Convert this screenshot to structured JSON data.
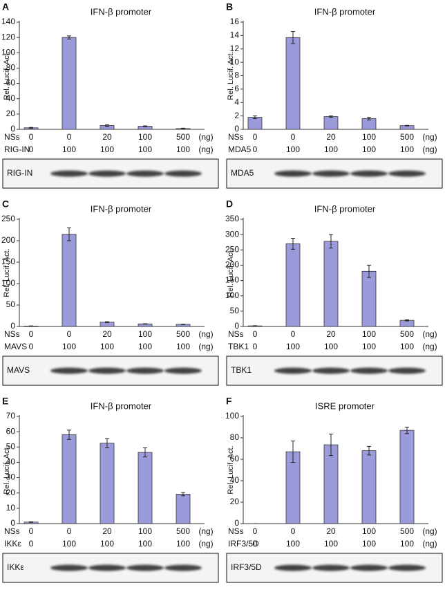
{
  "chart_data": [
    {
      "type": "bar",
      "panel": "A",
      "title": "IFN-β promoter",
      "ylabel": "Rel. Lucif. Act.",
      "values": [
        2,
        120,
        5,
        4,
        1
      ],
      "errors": [
        0.5,
        2,
        1,
        0.5,
        0.5
      ],
      "color": "#9b9bdc",
      "ylim": [
        0,
        140
      ],
      "yticks": [
        0,
        20,
        40,
        60,
        80,
        100,
        120,
        140
      ],
      "rows": [
        {
          "label": "NSs",
          "cells": [
            0,
            0,
            20,
            100,
            500
          ],
          "unit": "(ng)"
        },
        {
          "label": "RIG-IN",
          "cells": [
            0,
            100,
            100,
            100,
            100
          ],
          "unit": "(ng)"
        }
      ],
      "blot_label": "RIG-IN"
    },
    {
      "type": "bar",
      "panel": "B",
      "title": "IFN-β promoter",
      "ylabel": "Rel. Lucif. Act.",
      "values": [
        1.8,
        13.7,
        1.9,
        1.6,
        0.55
      ],
      "errors": [
        0.2,
        0.9,
        0.1,
        0.2,
        0.05
      ],
      "color": "#9b9bdc",
      "ylim": [
        0,
        16
      ],
      "yticks": [
        0,
        2,
        4,
        6,
        8,
        10,
        12,
        14,
        16
      ],
      "rows": [
        {
          "label": "NSs",
          "cells": [
            0,
            0,
            20,
            100,
            500
          ],
          "unit": "(ng)"
        },
        {
          "label": "MDA5",
          "cells": [
            0,
            100,
            100,
            100,
            100
          ],
          "unit": "(ng)"
        }
      ],
      "blot_label": "MDA5"
    },
    {
      "type": "bar",
      "panel": "C",
      "title": "IFN-β promoter",
      "ylabel": "Rel. Lucif. Act.",
      "values": [
        1,
        215,
        10,
        6,
        5
      ],
      "errors": [
        0.5,
        15,
        1,
        0.5,
        0.5
      ],
      "color": "#9b9bdc",
      "ylim": [
        0,
        250
      ],
      "yticks": [
        0,
        50,
        100,
        150,
        200,
        250
      ],
      "rows": [
        {
          "label": "NSs",
          "cells": [
            0,
            0,
            20,
            100,
            500
          ],
          "unit": "(ng)"
        },
        {
          "label": "MAVS",
          "cells": [
            0,
            100,
            100,
            100,
            100
          ],
          "unit": "(ng)"
        }
      ],
      "blot_label": "MAVS"
    },
    {
      "type": "bar",
      "panel": "D",
      "title": "IFN-β promoter",
      "ylabel": "Rel. Lucif. Act.",
      "values": [
        2,
        270,
        278,
        180,
        20
      ],
      "errors": [
        0.5,
        18,
        22,
        20,
        2
      ],
      "color": "#9b9bdc",
      "ylim": [
        0,
        350
      ],
      "yticks": [
        0,
        50,
        100,
        150,
        200,
        250,
        300,
        350
      ],
      "rows": [
        {
          "label": "NSs",
          "cells": [
            0,
            0,
            20,
            100,
            500
          ],
          "unit": "(ng)"
        },
        {
          "label": "TBK1",
          "cells": [
            0,
            100,
            100,
            100,
            100
          ],
          "unit": "(ng)"
        }
      ],
      "blot_label": "TBK1"
    },
    {
      "type": "bar",
      "panel": "E",
      "title": "IFN-β promoter",
      "ylabel": "Rel. Lucif. Act.",
      "values": [
        1,
        58,
        52.5,
        46.5,
        19.2
      ],
      "errors": [
        0.2,
        3,
        3,
        3,
        1
      ],
      "color": "#9b9bdc",
      "ylim": [
        0,
        70
      ],
      "yticks": [
        0,
        10,
        20,
        30,
        40,
        50,
        60,
        70
      ],
      "rows": [
        {
          "label": "NSs",
          "cells": [
            0,
            0,
            20,
            100,
            500
          ],
          "unit": "(ng)"
        },
        {
          "label": "IKKε",
          "cells": [
            0,
            100,
            100,
            100,
            100
          ],
          "unit": "(ng)"
        }
      ],
      "blot_label": "IKKε"
    },
    {
      "type": "bar",
      "panel": "F",
      "title": "ISRE promoter",
      "ylabel": "Rel. Lucif. Act.",
      "values": [
        0,
        67,
        73.5,
        68,
        87
      ],
      "errors": [
        0,
        10,
        10,
        4,
        3
      ],
      "color": "#9b9bdc",
      "ylim": [
        0,
        100
      ],
      "yticks": [
        0,
        20,
        40,
        60,
        80,
        100
      ],
      "rows": [
        {
          "label": "NSs",
          "cells": [
            0,
            0,
            20,
            100,
            500
          ],
          "unit": "(ng)"
        },
        {
          "label": "IRF3/5D",
          "cells": [
            0,
            100,
            100,
            100,
            100
          ],
          "unit": "(ng)"
        }
      ],
      "blot_label": "IRF3/5D"
    }
  ]
}
